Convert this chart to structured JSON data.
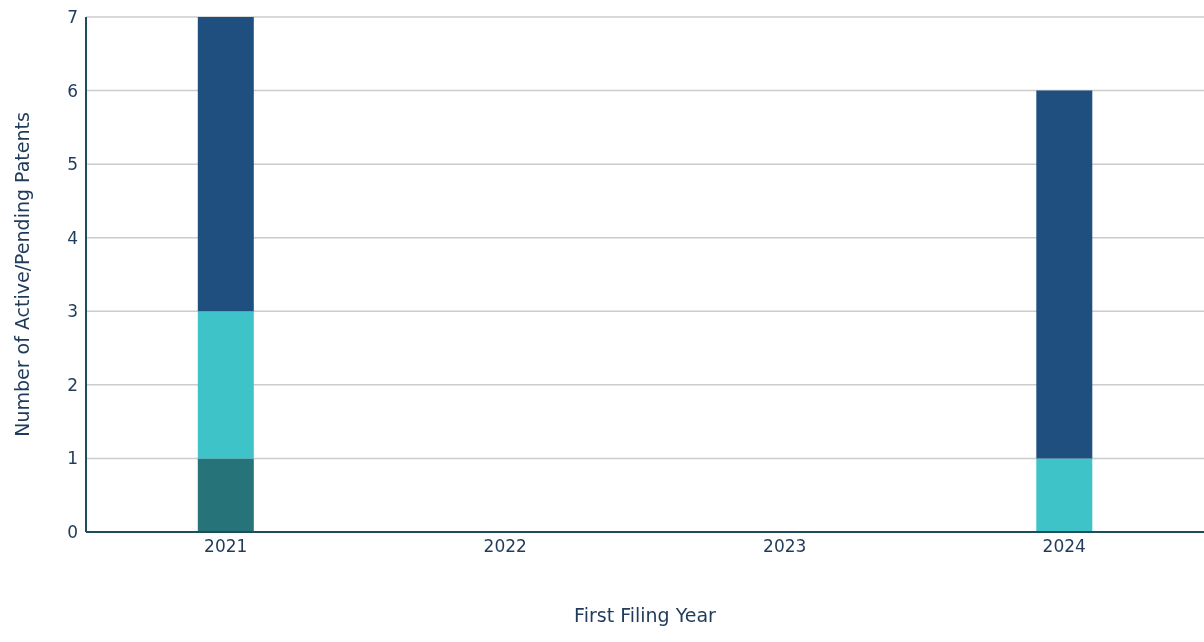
{
  "chart_data": {
    "type": "bar",
    "xlabel": "First Filing Year",
    "ylabel": "Number of Active/Pending Patents",
    "categories": [
      "2021",
      "2022",
      "2023",
      "2024"
    ],
    "stacked": true,
    "series": [
      {
        "color": "#26737a",
        "values": [
          1,
          0,
          0,
          0
        ]
      },
      {
        "color": "#3ec4c8",
        "values": [
          2,
          0,
          0,
          1
        ]
      },
      {
        "color": "#1f4f7f",
        "values": [
          4,
          0,
          0,
          5
        ]
      }
    ],
    "ylim": [
      0,
      7
    ],
    "yticks": [
      0,
      1,
      2,
      3,
      4,
      5,
      6,
      7
    ],
    "grid": "y",
    "legend": false
  }
}
